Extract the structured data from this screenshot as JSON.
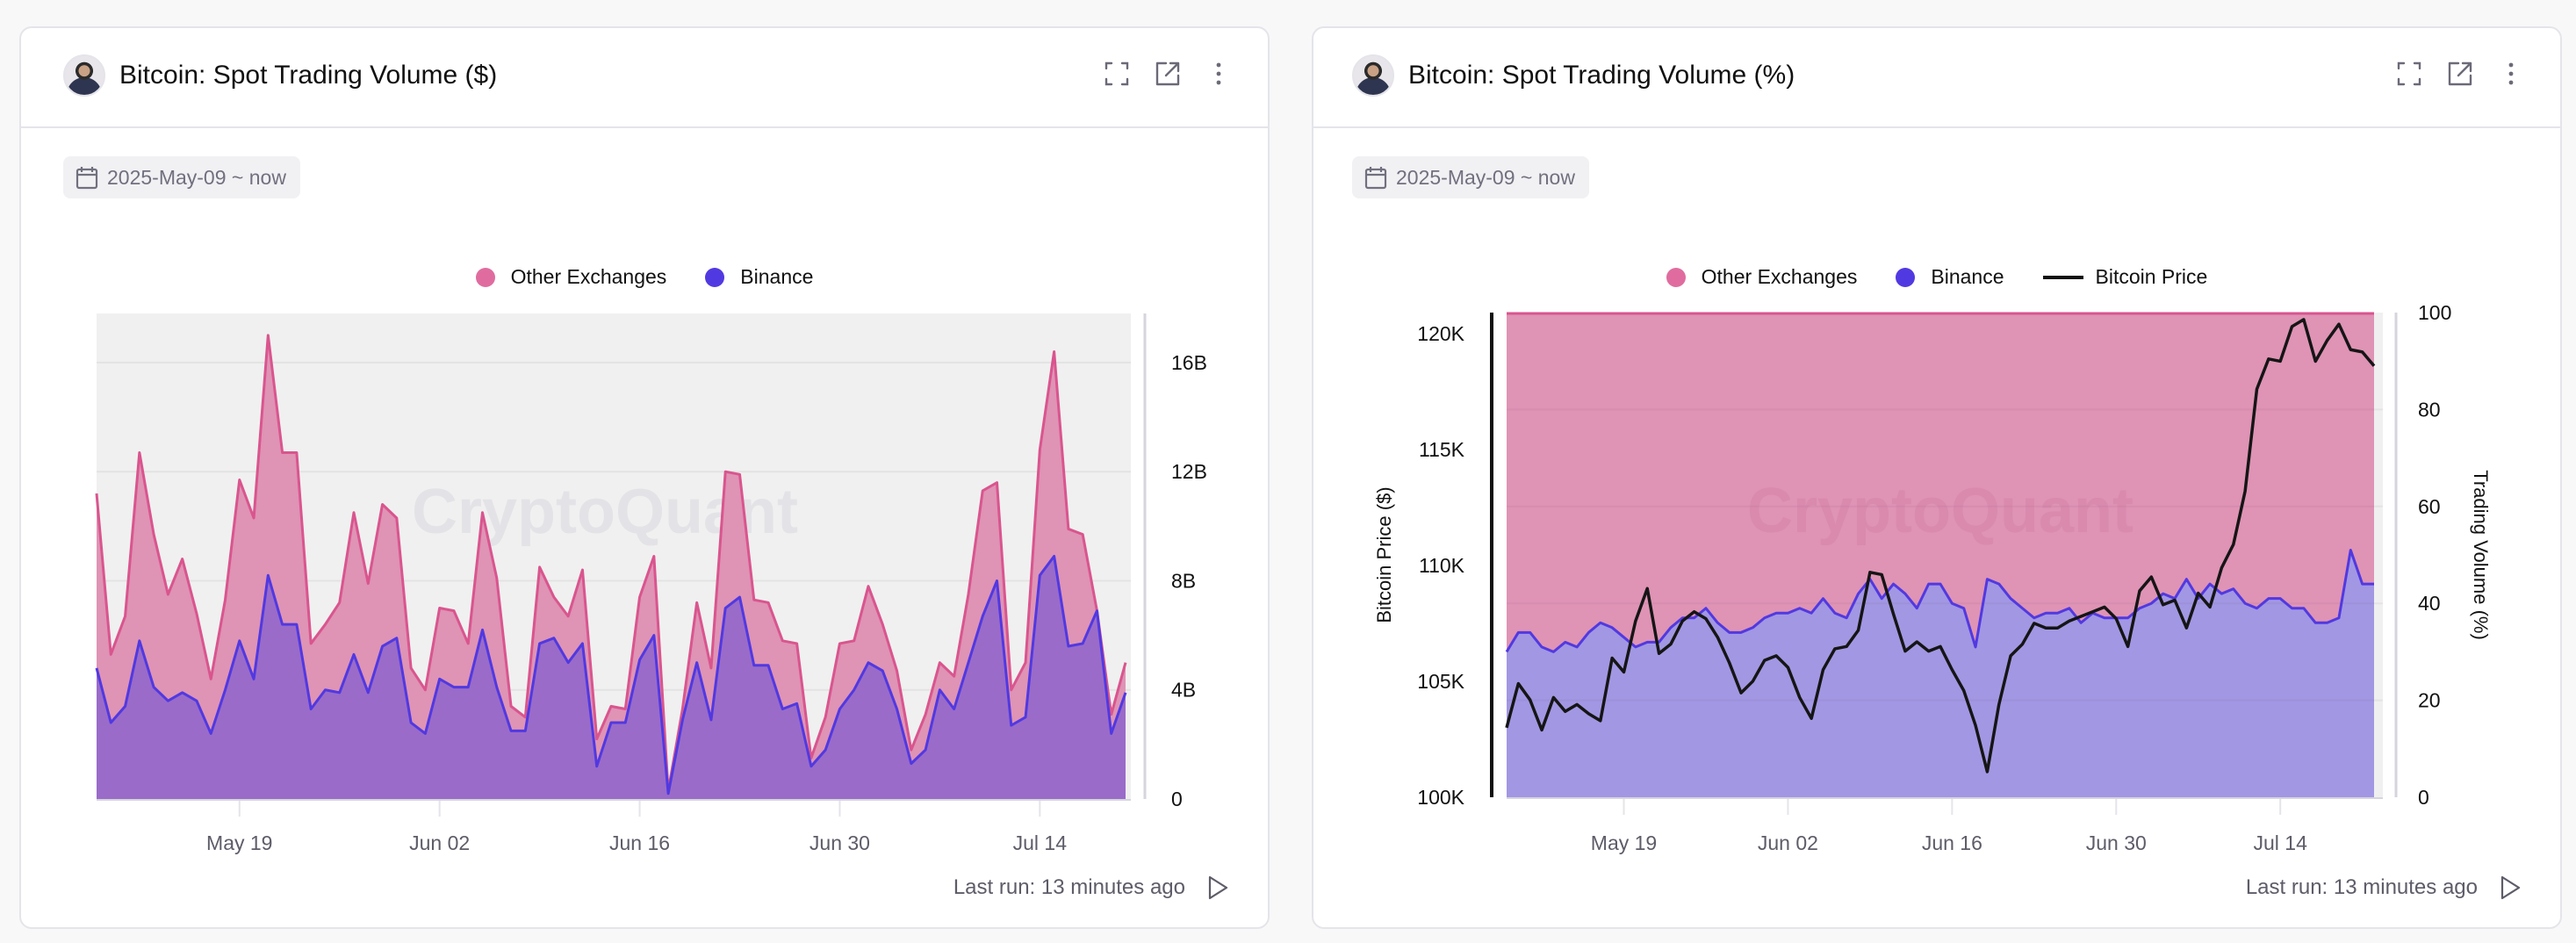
{
  "cards": [
    {
      "title": "Bitcoin: Spot Trading Volume ($)",
      "date_range": "2025-May-09 ~ now",
      "legend": [
        {
          "label": "Other Exchanges",
          "color": "#e06c9f",
          "kind": "dot"
        },
        {
          "label": "Binance",
          "color": "#5139e1",
          "kind": "dot"
        }
      ],
      "footer": "Last run: 13 minutes ago",
      "icons": [
        "fullscreen-icon",
        "open-external-icon",
        "more-vertical-icon"
      ]
    },
    {
      "title": "Bitcoin: Spot Trading Volume (%)",
      "date_range": "2025-May-09 ~ now",
      "legend": [
        {
          "label": "Other Exchanges",
          "color": "#e06c9f",
          "kind": "dot"
        },
        {
          "label": "Binance",
          "color": "#5139e1",
          "kind": "dot"
        },
        {
          "label": "Bitcoin Price",
          "color": "#111111",
          "kind": "line"
        }
      ],
      "footer": "Last run: 13 minutes ago",
      "icons": [
        "fullscreen-icon",
        "open-external-icon",
        "more-vertical-icon"
      ]
    }
  ],
  "watermark": "CryptoQuant",
  "colors": {
    "other_line": "#d9558e",
    "other_fill": "#df93b5",
    "binance_line": "#5139e1",
    "binance_fill_left": "#9a6bc9",
    "binance_fill_right": "#a297e3",
    "plot_bg": "#f0f0f0",
    "price_line": "#151515"
  },
  "chart_data": [
    {
      "type": "area",
      "stacked": true,
      "title": "Bitcoin: Spot Trading Volume ($)",
      "x_start": "2025-05-09",
      "x_interval": "1 day",
      "x_ticks": [
        "May 19",
        "Jun 02",
        "Jun 16",
        "Jun 30",
        "Jul 14"
      ],
      "x_tick_index": [
        10,
        24,
        38,
        52,
        66
      ],
      "y_axis": {
        "position": "right",
        "ticks": [
          "0",
          "4B",
          "8B",
          "12B",
          "16B"
        ],
        "tick_values": [
          0,
          4,
          8,
          12,
          16
        ],
        "range": [
          0,
          17.8
        ],
        "unit": "billion USD"
      },
      "grid": true,
      "legend": "top-center",
      "series": [
        {
          "name": "Binance",
          "values": [
            4.8,
            2.8,
            3.4,
            5.8,
            4.1,
            3.6,
            3.9,
            3.6,
            2.4,
            4.0,
            5.8,
            4.4,
            8.2,
            6.4,
            6.4,
            3.3,
            4.0,
            3.9,
            5.3,
            3.9,
            5.6,
            5.9,
            2.8,
            2.4,
            4.4,
            4.1,
            4.1,
            6.2,
            4.1,
            2.5,
            2.5,
            5.7,
            5.9,
            5.0,
            5.7,
            1.2,
            2.8,
            2.8,
            5.1,
            6.0,
            0.2,
            2.9,
            5.0,
            2.9,
            7.0,
            7.4,
            4.9,
            4.9,
            3.3,
            3.5,
            1.2,
            1.8,
            3.3,
            4.0,
            5.0,
            4.7,
            3.3,
            1.3,
            1.8,
            4.0,
            3.3,
            5.0,
            6.7,
            8.0,
            2.7,
            3.0,
            8.2,
            8.9,
            5.6,
            5.7,
            6.9,
            2.4,
            3.9
          ]
        },
        {
          "name": "Other Exchanges",
          "values": [
            6.4,
            2.5,
            3.3,
            6.9,
            5.6,
            3.9,
            4.9,
            3.2,
            2.0,
            3.3,
            5.9,
            5.9,
            8.8,
            6.3,
            6.3,
            2.4,
            2.4,
            3.3,
            5.2,
            4.0,
            5.2,
            4.4,
            2.0,
            1.6,
            2.6,
            2.8,
            1.6,
            4.3,
            4.0,
            0.9,
            0.5,
            2.8,
            1.5,
            1.7,
            2.7,
            1.0,
            0.6,
            0.5,
            2.3,
            2.9,
            0.1,
            0.4,
            2.2,
            1.9,
            5.0,
            4.5,
            2.4,
            2.3,
            2.5,
            2.2,
            0.3,
            1.2,
            2.4,
            1.8,
            2.8,
            1.7,
            1.4,
            0.5,
            1.3,
            1.0,
            1.2,
            2.5,
            4.6,
            3.6,
            1.3,
            2.0,
            4.6,
            7.5,
            4.3,
            4.0,
            0.0,
            0.7,
            1.1
          ]
        }
      ]
    },
    {
      "type": "area",
      "stacked": true,
      "normalized_percent": true,
      "title": "Bitcoin: Spot Trading Volume (%)",
      "x_start": "2025-05-09",
      "x_interval": "1 day",
      "x_ticks": [
        "May 19",
        "Jun 02",
        "Jun 16",
        "Jun 30",
        "Jul 14"
      ],
      "x_tick_index": [
        10,
        24,
        38,
        52,
        66
      ],
      "y_axis_left": {
        "label": "Bitcoin Price ($)",
        "ticks": [
          "100K",
          "105K",
          "110K",
          "115K",
          "120K"
        ],
        "tick_values": [
          100000,
          105000,
          110000,
          115000,
          120000
        ],
        "range": [
          100000,
          120900
        ]
      },
      "y_axis_right": {
        "label": "Trading Volume (%)",
        "ticks": [
          "0",
          "20",
          "40",
          "60",
          "80",
          "100"
        ],
        "tick_values": [
          0,
          20,
          40,
          60,
          80,
          100
        ],
        "range": [
          0,
          100
        ]
      },
      "grid": true,
      "legend": "top-center",
      "series": [
        {
          "name": "Binance",
          "unit": "%",
          "values": [
            30,
            34,
            34,
            31,
            30,
            32,
            31,
            34,
            36,
            35,
            33,
            31,
            32,
            32,
            35,
            37,
            37,
            39,
            36,
            34,
            34,
            35,
            37,
            38,
            38,
            39,
            38,
            41,
            38,
            37,
            42,
            45,
            41,
            44,
            42,
            39,
            44,
            44,
            40,
            39,
            31,
            45,
            44,
            41,
            39,
            37,
            38,
            38,
            39,
            36,
            38,
            37,
            37,
            37,
            39,
            40,
            42,
            41,
            45,
            41,
            44,
            42,
            43,
            40,
            39,
            41,
            41,
            39,
            39,
            36,
            36,
            37,
            51,
            44,
            44
          ]
        },
        {
          "name": "Other Exchanges",
          "unit": "%",
          "values": "100 minus Binance"
        },
        {
          "name": "Bitcoin Price",
          "unit": "USD",
          "axis": "left",
          "values": [
            103000,
            104900,
            104200,
            102900,
            104300,
            103700,
            104000,
            103600,
            103300,
            106000,
            105400,
            107600,
            109000,
            106200,
            106600,
            107600,
            108000,
            107700,
            106900,
            105800,
            104500,
            105000,
            105900,
            106100,
            105600,
            104300,
            103400,
            105500,
            106400,
            106500,
            107200,
            109700,
            109600,
            107900,
            106300,
            106700,
            106300,
            106500,
            105500,
            104600,
            103100,
            101100,
            104000,
            106100,
            106600,
            107500,
            107300,
            107300,
            107600,
            107800,
            108000,
            108200,
            107700,
            106500,
            108900,
            109500,
            108300,
            108500,
            107300,
            108800,
            108200,
            109900,
            110900,
            113200,
            117600,
            118900,
            118800,
            120300,
            120600,
            118800,
            119700,
            120400,
            119300,
            119200,
            118600
          ]
        }
      ]
    }
  ]
}
